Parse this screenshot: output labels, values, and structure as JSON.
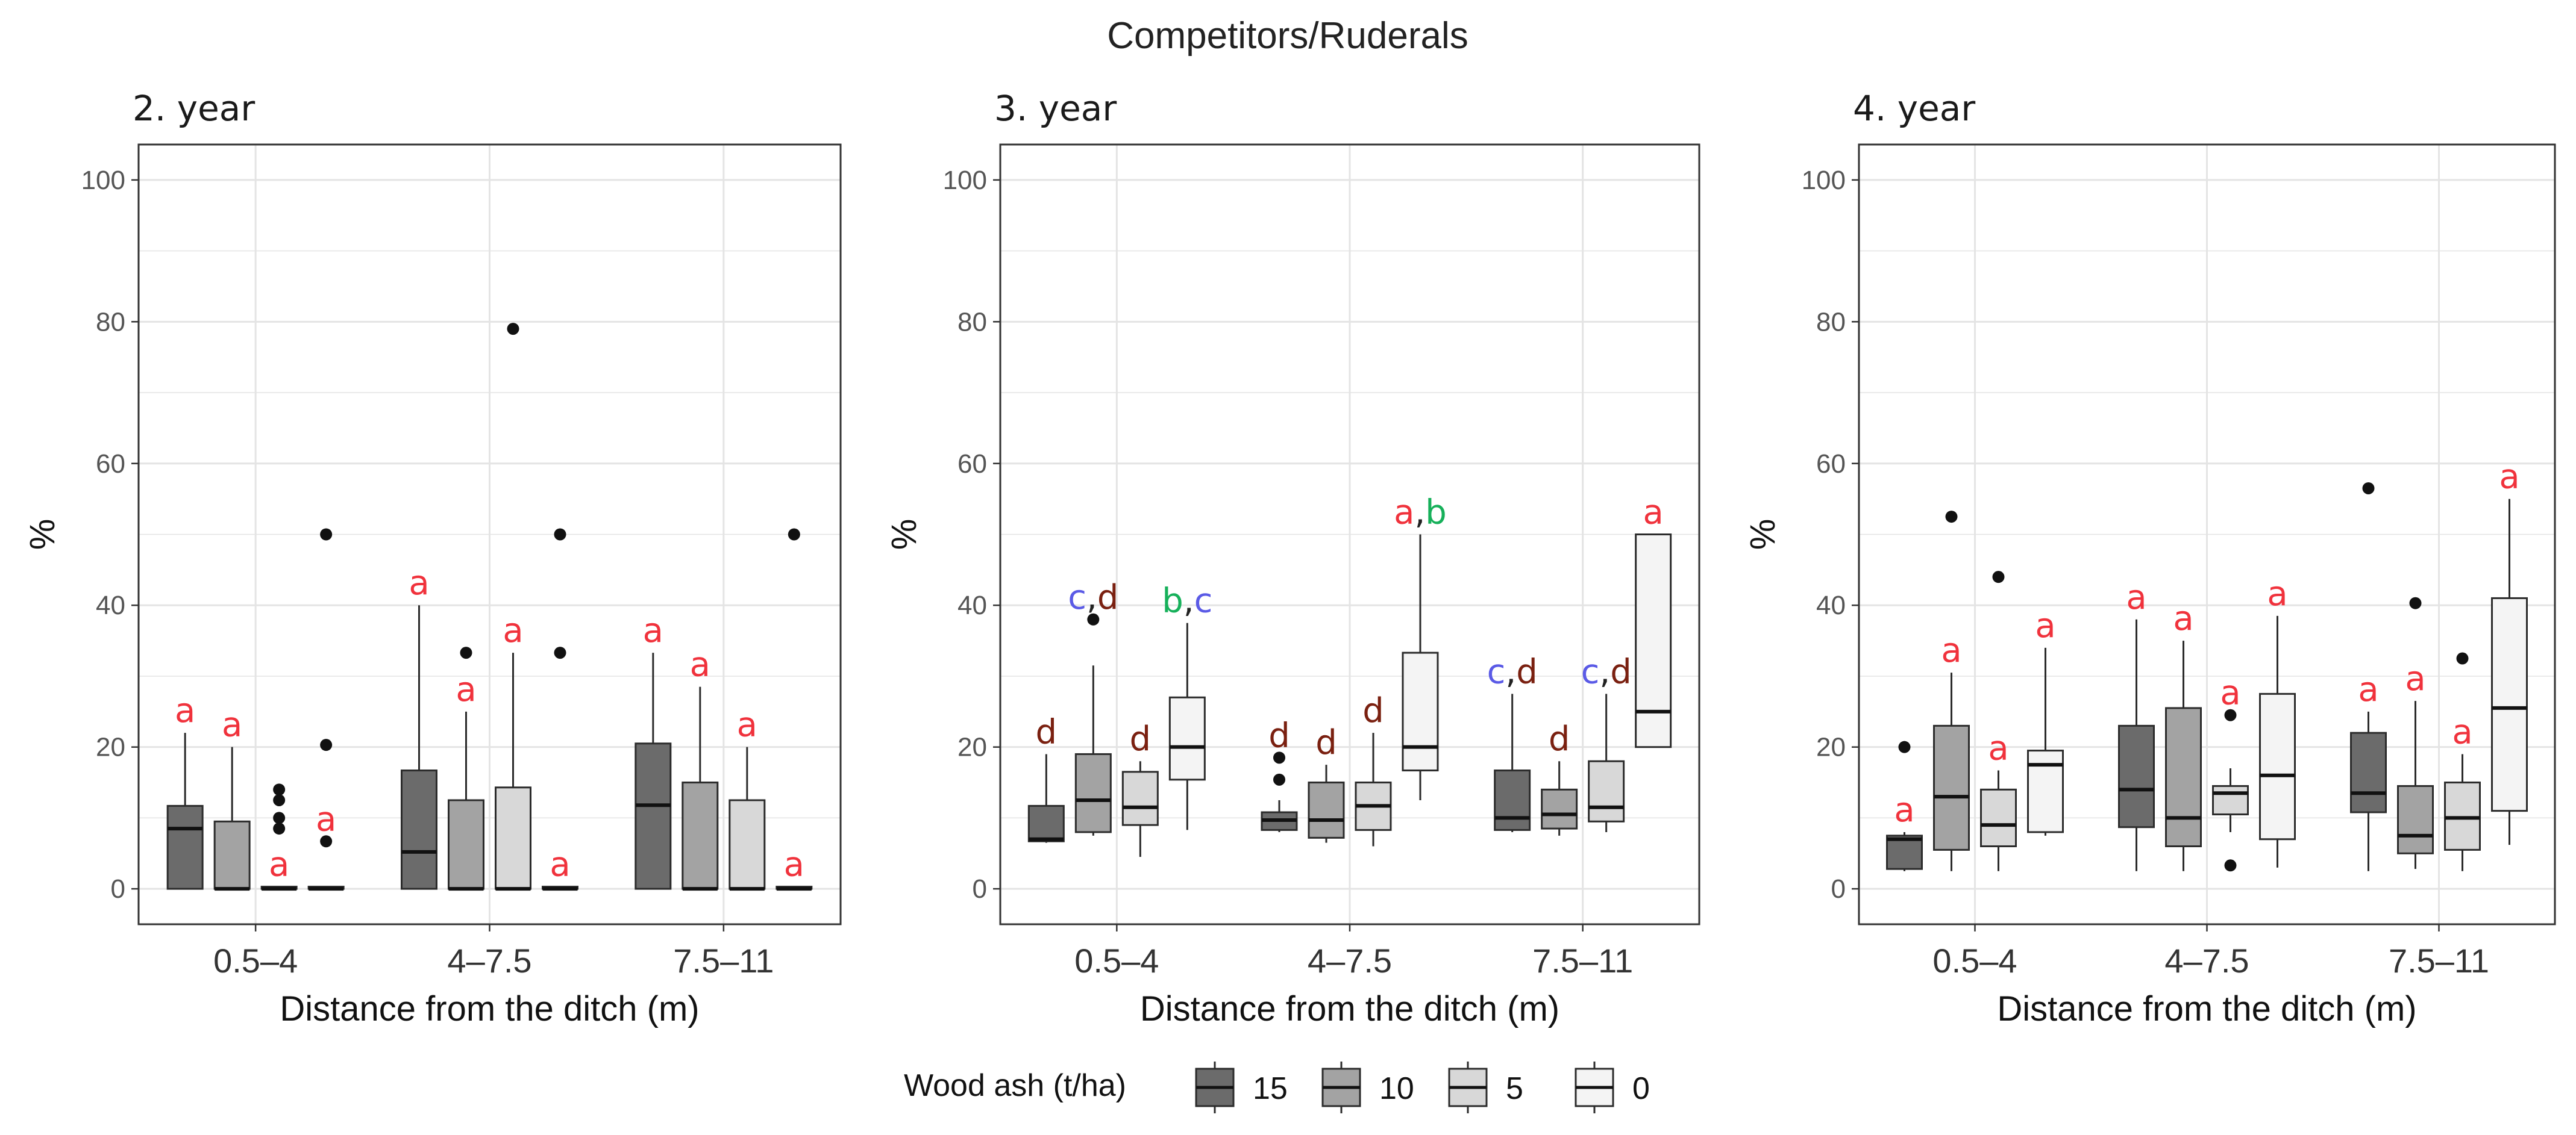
{
  "title": "Competitors/Ruderals",
  "chart_data": [
    {
      "type": "box",
      "panel_title": "2. year",
      "xlabel": "Distance from the ditch (m)",
      "ylabel": "%",
      "ylim": [
        -5,
        105
      ],
      "yticks": [
        0,
        20,
        40,
        60,
        80,
        100
      ],
      "categories": [
        "0.5–4",
        "4–7.5",
        "7.5–11"
      ],
      "series": [
        {
          "name": "15",
          "boxes": [
            {
              "cat": 0,
              "low": 0,
              "q1": 0,
              "median": 8.5,
              "q3": 11.7,
              "high": 22,
              "outliers": [],
              "letters": [
                {
                  "t": "a",
                  "c": "red"
                }
              ]
            },
            {
              "cat": 1,
              "low": 0,
              "q1": 0,
              "median": 5.2,
              "q3": 16.7,
              "high": 40,
              "outliers": [],
              "letters": [
                {
                  "t": "a",
                  "c": "red"
                }
              ]
            },
            {
              "cat": 2,
              "low": 0,
              "q1": 0,
              "median": 11.8,
              "q3": 20.5,
              "high": 33.3,
              "outliers": [],
              "letters": [
                {
                  "t": "a",
                  "c": "red"
                }
              ]
            }
          ]
        },
        {
          "name": "10",
          "boxes": [
            {
              "cat": 0,
              "low": 0,
              "q1": 0,
              "median": 0,
              "q3": 9.5,
              "high": 20,
              "outliers": [],
              "letters": [
                {
                  "t": "a",
                  "c": "red"
                }
              ]
            },
            {
              "cat": 1,
              "low": 0,
              "q1": 0,
              "median": 0,
              "q3": 12.5,
              "high": 25,
              "outliers": [
                33.3
              ],
              "letters": [
                {
                  "t": "a",
                  "c": "red"
                }
              ]
            },
            {
              "cat": 2,
              "low": 0,
              "q1": 0,
              "median": 0,
              "q3": 15,
              "high": 28.5,
              "outliers": [],
              "letters": [
                {
                  "t": "a",
                  "c": "red"
                }
              ]
            }
          ]
        },
        {
          "name": "5",
          "boxes": [
            {
              "cat": 0,
              "low": 0,
              "q1": 0,
              "median": 0,
              "q3": 0.3,
              "high": 0.3,
              "outliers": [
                8.5,
                10,
                12.5,
                14
              ],
              "letters": [
                {
                  "t": "a",
                  "c": "red"
                }
              ]
            },
            {
              "cat": 1,
              "low": 0,
              "q1": 0,
              "median": 0,
              "q3": 14.3,
              "high": 33.3,
              "outliers": [
                79
              ],
              "letters": [
                {
                  "t": "a",
                  "c": "red"
                }
              ]
            },
            {
              "cat": 2,
              "low": 0,
              "q1": 0,
              "median": 0,
              "q3": 12.5,
              "high": 20,
              "outliers": [],
              "letters": [
                {
                  "t": "a",
                  "c": "red"
                }
              ]
            }
          ]
        },
        {
          "name": "0",
          "boxes": [
            {
              "cat": 0,
              "low": 0,
              "q1": 0,
              "median": 0,
              "q3": 0.3,
              "high": 0.3,
              "outliers": [
                6.7,
                20.3,
                50
              ],
              "letters": [
                {
                  "t": "a",
                  "c": "red"
                }
              ]
            },
            {
              "cat": 1,
              "low": 0,
              "q1": 0,
              "median": 0,
              "q3": 0.3,
              "high": 0.3,
              "outliers": [
                33.3,
                50
              ],
              "letters": [
                {
                  "t": "a",
                  "c": "red"
                }
              ]
            },
            {
              "cat": 2,
              "low": 0,
              "q1": 0,
              "median": 0,
              "q3": 0.3,
              "high": 0.3,
              "outliers": [
                50
              ],
              "letters": [
                {
                  "t": "a",
                  "c": "red"
                }
              ]
            }
          ]
        }
      ]
    },
    {
      "type": "box",
      "panel_title": "3. year",
      "xlabel": "Distance from the ditch (m)",
      "ylabel": "%",
      "ylim": [
        -5,
        105
      ],
      "yticks": [
        0,
        20,
        40,
        60,
        80,
        100
      ],
      "categories": [
        "0.5–4",
        "4–7.5",
        "7.5–11"
      ],
      "series": [
        {
          "name": "15",
          "boxes": [
            {
              "cat": 0,
              "low": 6.5,
              "q1": 6.7,
              "median": 7,
              "q3": 11.7,
              "high": 19,
              "outliers": [],
              "letters": [
                {
                  "t": "d",
                  "c": "brown"
                }
              ]
            },
            {
              "cat": 1,
              "low": 8,
              "q1": 8.3,
              "median": 9.7,
              "q3": 10.8,
              "high": 12.5,
              "outliers": [
                15.4,
                18.5
              ],
              "letters": [
                {
                  "t": "d",
                  "c": "brown"
                }
              ]
            },
            {
              "cat": 2,
              "low": 8,
              "q1": 8.3,
              "median": 10,
              "q3": 16.7,
              "high": 27.5,
              "outliers": [],
              "letters": [
                {
                  "t": "c",
                  "c": "blue"
                },
                {
                  "t": ",",
                  "c": "dark"
                },
                {
                  "t": "d",
                  "c": "brown"
                }
              ]
            }
          ]
        },
        {
          "name": "10",
          "boxes": [
            {
              "cat": 0,
              "low": 7.5,
              "q1": 8,
              "median": 12.5,
              "q3": 19,
              "high": 31.5,
              "outliers": [
                38
              ],
              "letters": [
                {
                  "t": "c",
                  "c": "blue"
                },
                {
                  "t": ",",
                  "c": "dark"
                },
                {
                  "t": "d",
                  "c": "brown"
                }
              ]
            },
            {
              "cat": 1,
              "low": 6.5,
              "q1": 7.2,
              "median": 9.7,
              "q3": 15,
              "high": 17.5,
              "outliers": [],
              "letters": [
                {
                  "t": "d",
                  "c": "brown"
                }
              ]
            },
            {
              "cat": 2,
              "low": 7.5,
              "q1": 8.5,
              "median": 10.5,
              "q3": 14,
              "high": 18,
              "outliers": [],
              "letters": [
                {
                  "t": "d",
                  "c": "brown"
                }
              ]
            }
          ]
        },
        {
          "name": "5",
          "boxes": [
            {
              "cat": 0,
              "low": 4.5,
              "q1": 9,
              "median": 11.5,
              "q3": 16.5,
              "high": 18,
              "outliers": [],
              "letters": [
                {
                  "t": "d",
                  "c": "brown"
                }
              ]
            },
            {
              "cat": 1,
              "low": 6,
              "q1": 8.3,
              "median": 11.7,
              "q3": 15,
              "high": 22,
              "outliers": [],
              "letters": [
                {
                  "t": "d",
                  "c": "brown"
                }
              ]
            },
            {
              "cat": 2,
              "low": 8,
              "q1": 9.5,
              "median": 11.5,
              "q3": 18,
              "high": 27.5,
              "outliers": [],
              "letters": [
                {
                  "t": "c",
                  "c": "blue"
                },
                {
                  "t": ",",
                  "c": "dark"
                },
                {
                  "t": "d",
                  "c": "brown"
                }
              ]
            }
          ]
        },
        {
          "name": "0",
          "boxes": [
            {
              "cat": 0,
              "low": 8.3,
              "q1": 15.4,
              "median": 20,
              "q3": 27,
              "high": 37.5,
              "outliers": [],
              "letters": [
                {
                  "t": "b",
                  "c": "green"
                },
                {
                  "t": ",",
                  "c": "dark"
                },
                {
                  "t": "c",
                  "c": "blue"
                }
              ]
            },
            {
              "cat": 1,
              "low": 12.5,
              "q1": 16.7,
              "median": 20,
              "q3": 33.3,
              "high": 50,
              "outliers": [],
              "letters": [
                {
                  "t": "a",
                  "c": "red"
                },
                {
                  "t": ",",
                  "c": "dark"
                },
                {
                  "t": "b",
                  "c": "green"
                }
              ]
            },
            {
              "cat": 2,
              "low": 20,
              "q1": 20,
              "median": 25,
              "q3": 50,
              "high": 50,
              "outliers": [],
              "letters": [
                {
                  "t": "a",
                  "c": "red"
                }
              ]
            }
          ]
        }
      ]
    },
    {
      "type": "box",
      "panel_title": "4. year",
      "xlabel": "Distance from the ditch (m)",
      "ylabel": "%",
      "ylim": [
        -5,
        105
      ],
      "yticks": [
        0,
        20,
        40,
        60,
        80,
        100
      ],
      "categories": [
        "0.5–4",
        "4–7.5",
        "7.5–11"
      ],
      "series": [
        {
          "name": "15",
          "boxes": [
            {
              "cat": 0,
              "low": 2.5,
              "q1": 2.8,
              "median": 7,
              "q3": 7.5,
              "high": 8,
              "outliers": [
                20
              ],
              "letters": [
                {
                  "t": "a",
                  "c": "red"
                }
              ]
            },
            {
              "cat": 1,
              "low": 2.5,
              "q1": 8.7,
              "median": 14,
              "q3": 23,
              "high": 38,
              "outliers": [],
              "letters": [
                {
                  "t": "a",
                  "c": "red"
                }
              ]
            },
            {
              "cat": 2,
              "low": 2.5,
              "q1": 10.8,
              "median": 13.5,
              "q3": 22,
              "high": 25,
              "outliers": [
                56.5
              ],
              "letters": [
                {
                  "t": "a",
                  "c": "red"
                }
              ]
            }
          ]
        },
        {
          "name": "10",
          "boxes": [
            {
              "cat": 0,
              "low": 2.5,
              "q1": 5.5,
              "median": 13,
              "q3": 23,
              "high": 30.5,
              "outliers": [
                52.5
              ],
              "letters": [
                {
                  "t": "a",
                  "c": "red"
                }
              ]
            },
            {
              "cat": 1,
              "low": 2.5,
              "q1": 6,
              "median": 10,
              "q3": 25.5,
              "high": 35,
              "outliers": [],
              "letters": [
                {
                  "t": "a",
                  "c": "red"
                }
              ]
            },
            {
              "cat": 2,
              "low": 2.8,
              "q1": 5,
              "median": 7.5,
              "q3": 14.5,
              "high": 26.5,
              "outliers": [
                40.3
              ],
              "letters": [
                {
                  "t": "a",
                  "c": "red"
                }
              ]
            }
          ]
        },
        {
          "name": "5",
          "boxes": [
            {
              "cat": 0,
              "low": 2.5,
              "q1": 6,
              "median": 9,
              "q3": 14,
              "high": 16.7,
              "outliers": [
                44
              ],
              "letters": [
                {
                  "t": "a",
                  "c": "red"
                }
              ]
            },
            {
              "cat": 1,
              "low": 8,
              "q1": 10.5,
              "median": 13.5,
              "q3": 14.5,
              "high": 17,
              "outliers": [
                3.3,
                24.5
              ],
              "letters": [
                {
                  "t": "a",
                  "c": "red"
                }
              ]
            },
            {
              "cat": 2,
              "low": 2.5,
              "q1": 5.5,
              "median": 10,
              "q3": 15,
              "high": 19,
              "outliers": [
                32.5
              ],
              "letters": [
                {
                  "t": "a",
                  "c": "red"
                }
              ]
            }
          ]
        },
        {
          "name": "0",
          "boxes": [
            {
              "cat": 0,
              "low": 7.5,
              "q1": 8,
              "median": 17.5,
              "q3": 19.5,
              "high": 34,
              "outliers": [],
              "letters": [
                {
                  "t": "a",
                  "c": "red"
                }
              ]
            },
            {
              "cat": 1,
              "low": 3,
              "q1": 7,
              "median": 16,
              "q3": 27.5,
              "high": 38.5,
              "outliers": [],
              "letters": [
                {
                  "t": "a",
                  "c": "red"
                }
              ]
            },
            {
              "cat": 2,
              "low": 6.2,
              "q1": 11,
              "median": 25.5,
              "q3": 41,
              "high": 55,
              "outliers": [],
              "letters": [
                {
                  "t": "a",
                  "c": "red"
                }
              ]
            }
          ]
        }
      ]
    }
  ],
  "legend": {
    "title": "Wood ash (t/ha)",
    "items": [
      {
        "label": "15",
        "fill": "#6b6b6b"
      },
      {
        "label": "10",
        "fill": "#a3a3a3"
      },
      {
        "label": "5",
        "fill": "#d8d8d8"
      },
      {
        "label": "0",
        "fill": "#f4f4f4"
      }
    ]
  },
  "colors": {
    "red": "#f0323c",
    "blue": "#5a5ae6",
    "green": "#16b05a",
    "brown": "#7a2010",
    "dark": "#222222",
    "grid": "#e4e4e4",
    "box_line": "#2b2b2b"
  }
}
